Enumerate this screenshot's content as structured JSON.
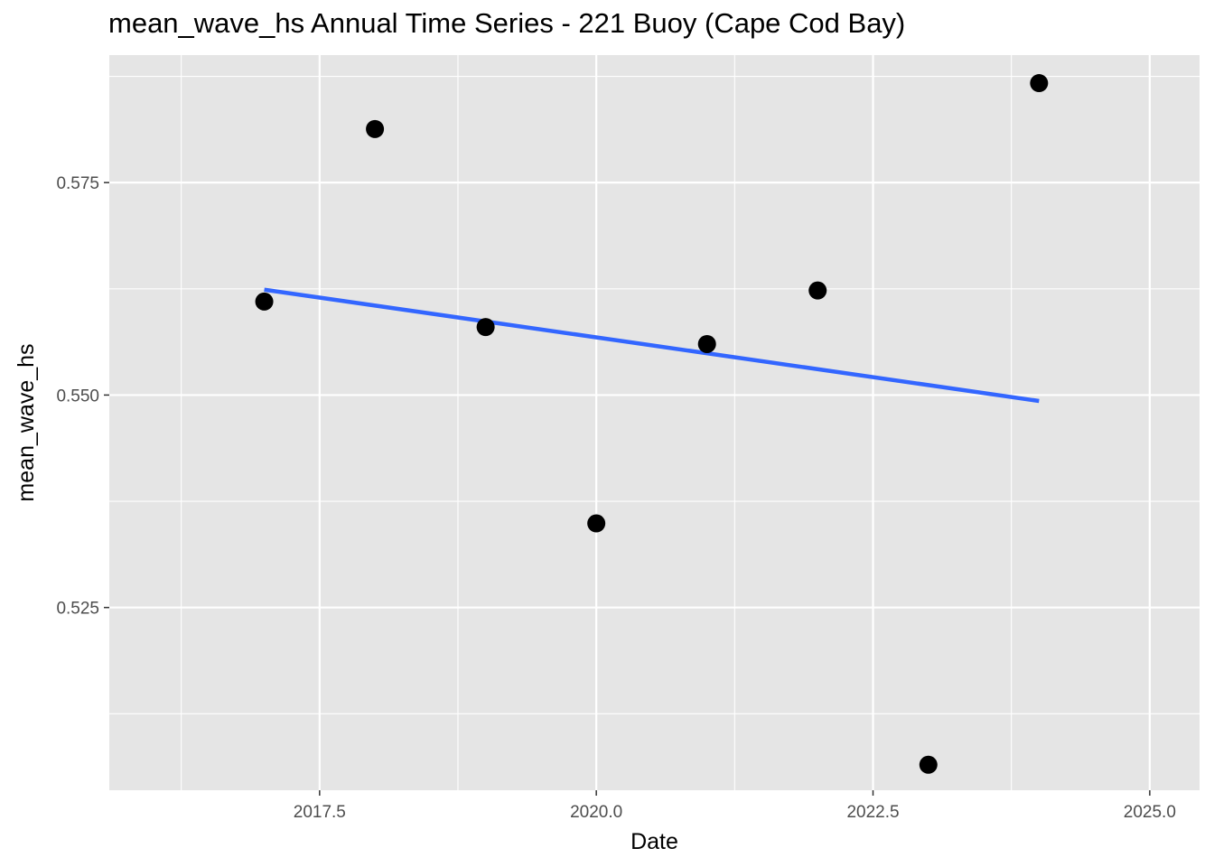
{
  "chart_data": {
    "type": "scatter",
    "title": "mean_wave_hs Annual Time Series - 221 Buoy (Cape Cod Bay)",
    "xlabel": "Date",
    "ylabel": "mean_wave_hs",
    "xlim": [
      2015.6,
      2025.45
    ],
    "ylim": [
      0.5035,
      0.59
    ],
    "x_ticks": [
      2017.5,
      2020.0,
      2022.5,
      2025.0
    ],
    "x_tick_labels": [
      "2017.5",
      "2020.0",
      "2022.5",
      "2025.0"
    ],
    "y_ticks": [
      0.525,
      0.55,
      0.575
    ],
    "y_tick_labels": [
      "0.525",
      "0.550",
      "0.575"
    ],
    "grid": true,
    "series": [
      {
        "type": "scatter",
        "color": "#000000",
        "x": [
          2017,
          2018,
          2019,
          2020,
          2021,
          2022,
          2023,
          2024
        ],
        "y": [
          0.561,
          0.5813,
          0.558,
          0.5349,
          0.556,
          0.5623,
          0.5065,
          0.5867
        ]
      },
      {
        "type": "line",
        "color": "#3366FF",
        "x": [
          2017,
          2024
        ],
        "y": [
          0.5624,
          0.5493
        ]
      }
    ],
    "colors": {
      "panel": "#E5E5E5",
      "grid": "#FFFFFF",
      "points": "#000000",
      "trend": "#3366FF"
    }
  }
}
